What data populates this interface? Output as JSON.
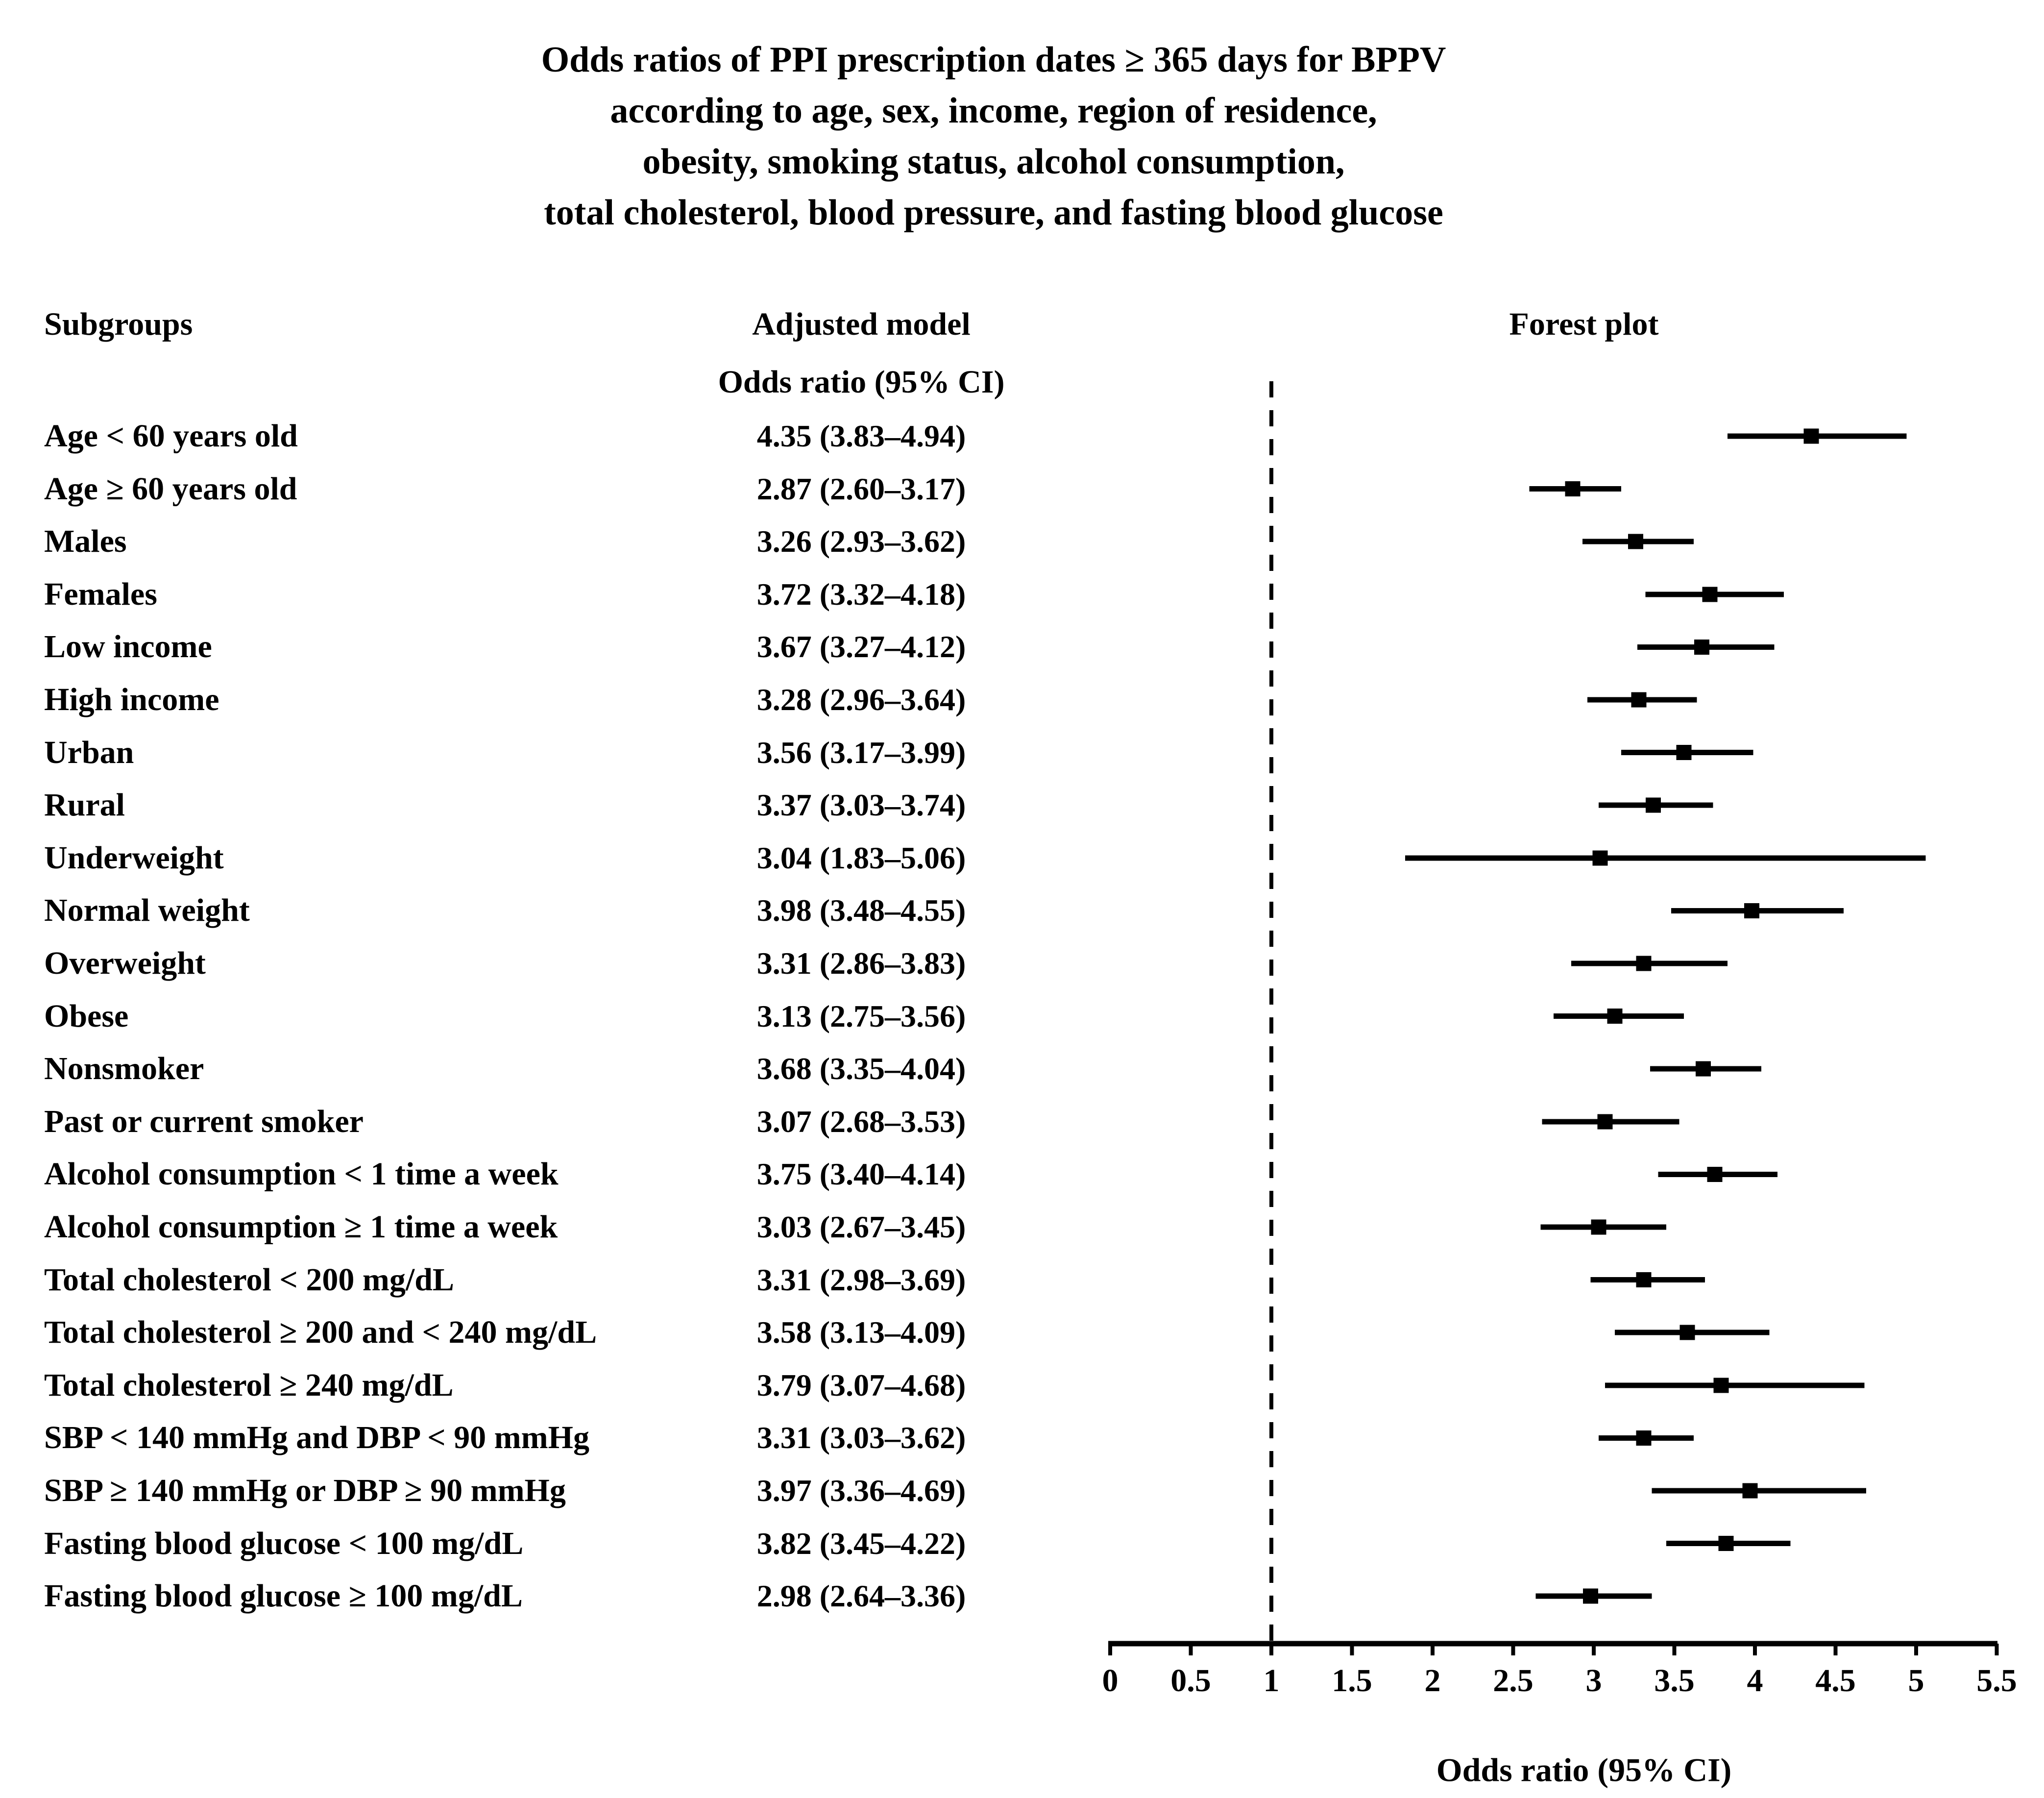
{
  "title": {
    "lines": [
      "Odds ratios of PPI prescription dates ≥ 365 days for BPPV",
      "according to age, sex, income, region of residence,",
      "obesity, smoking status, alcohol consumption,",
      "total cholesterol, blood pressure, and fasting blood glucose"
    ]
  },
  "columns": {
    "subgroups": "Subgroups",
    "adjusted_model": "Adjusted model",
    "odds_ratio_subheader": "Odds ratio (95% CI)",
    "forest_plot": "Forest plot"
  },
  "axis": {
    "label": "Odds ratio (95% CI)",
    "min": 0,
    "max": 5.5,
    "tick_step": 0.5,
    "reference_line": 1,
    "tick_labels": [
      "0",
      "0.5",
      "1",
      "1.5",
      "2",
      "2.5",
      "3",
      "3.5",
      "4",
      "4.5",
      "5",
      "5.5"
    ]
  },
  "colors": {
    "foreground": "#000000",
    "background": "#ffffff"
  },
  "chart_data": {
    "type": "forest",
    "title": "Odds ratios of PPI prescription dates ≥ 365 days for BPPV according to age, sex, income, region of residence, obesity, smoking status, alcohol consumption, total cholesterol, blood pressure, and fasting blood glucose",
    "xlabel": "Odds ratio (95% CI)",
    "xlim": [
      0,
      5.5
    ],
    "x_ticks": [
      0,
      0.5,
      1,
      1.5,
      2,
      2.5,
      3,
      3.5,
      4,
      4.5,
      5,
      5.5
    ],
    "reference_line": 1,
    "legend_position": "none",
    "grid": false,
    "rows": [
      {
        "label": "Age < 60 years old",
        "or": 4.35,
        "ci_low": 3.83,
        "ci_high": 4.94,
        "display": "4.35 (3.83–4.94)"
      },
      {
        "label": "Age ≥ 60 years old",
        "or": 2.87,
        "ci_low": 2.6,
        "ci_high": 3.17,
        "display": "2.87 (2.60–3.17)"
      },
      {
        "label": "Males",
        "or": 3.26,
        "ci_low": 2.93,
        "ci_high": 3.62,
        "display": "3.26 (2.93–3.62)"
      },
      {
        "label": "Females",
        "or": 3.72,
        "ci_low": 3.32,
        "ci_high": 4.18,
        "display": "3.72 (3.32–4.18)"
      },
      {
        "label": "Low income",
        "or": 3.67,
        "ci_low": 3.27,
        "ci_high": 4.12,
        "display": "3.67 (3.27–4.12)"
      },
      {
        "label": "High income",
        "or": 3.28,
        "ci_low": 2.96,
        "ci_high": 3.64,
        "display": "3.28 (2.96–3.64)"
      },
      {
        "label": "Urban",
        "or": 3.56,
        "ci_low": 3.17,
        "ci_high": 3.99,
        "display": "3.56 (3.17–3.99)"
      },
      {
        "label": "Rural",
        "or": 3.37,
        "ci_low": 3.03,
        "ci_high": 3.74,
        "display": "3.37 (3.03–3.74)"
      },
      {
        "label": "Underweight",
        "or": 3.04,
        "ci_low": 1.83,
        "ci_high": 5.06,
        "display": "3.04 (1.83–5.06)"
      },
      {
        "label": "Normal weight",
        "or": 3.98,
        "ci_low": 3.48,
        "ci_high": 4.55,
        "display": "3.98 (3.48–4.55)"
      },
      {
        "label": "Overweight",
        "or": 3.31,
        "ci_low": 2.86,
        "ci_high": 3.83,
        "display": "3.31 (2.86–3.83)"
      },
      {
        "label": "Obese",
        "or": 3.13,
        "ci_low": 2.75,
        "ci_high": 3.56,
        "display": "3.13 (2.75–3.56)"
      },
      {
        "label": "Nonsmoker",
        "or": 3.68,
        "ci_low": 3.35,
        "ci_high": 4.04,
        "display": "3.68 (3.35–4.04)"
      },
      {
        "label": "Past or current smoker",
        "or": 3.07,
        "ci_low": 2.68,
        "ci_high": 3.53,
        "display": "3.07 (2.68–3.53)"
      },
      {
        "label": "Alcohol consumption < 1 time a week",
        "or": 3.75,
        "ci_low": 3.4,
        "ci_high": 4.14,
        "display": "3.75 (3.40–4.14)"
      },
      {
        "label": "Alcohol consumption ≥ 1 time a week",
        "or": 3.03,
        "ci_low": 2.67,
        "ci_high": 3.45,
        "display": "3.03 (2.67–3.45)"
      },
      {
        "label": "Total cholesterol < 200 mg/dL",
        "or": 3.31,
        "ci_low": 2.98,
        "ci_high": 3.69,
        "display": "3.31 (2.98–3.69)"
      },
      {
        "label": "Total cholesterol ≥ 200 and < 240 mg/dL",
        "or": 3.58,
        "ci_low": 3.13,
        "ci_high": 4.09,
        "display": "3.58 (3.13–4.09)"
      },
      {
        "label": "Total cholesterol ≥ 240 mg/dL",
        "or": 3.79,
        "ci_low": 3.07,
        "ci_high": 4.68,
        "display": "3.79 (3.07–4.68)"
      },
      {
        "label": "SBP < 140 mmHg and DBP < 90 mmHg",
        "or": 3.31,
        "ci_low": 3.03,
        "ci_high": 3.62,
        "display": "3.31 (3.03–3.62)"
      },
      {
        "label": "SBP ≥ 140 mmHg or DBP ≥ 90 mmHg",
        "or": 3.97,
        "ci_low": 3.36,
        "ci_high": 4.69,
        "display": "3.97 (3.36–4.69)"
      },
      {
        "label": "Fasting blood glucose < 100 mg/dL",
        "or": 3.82,
        "ci_low": 3.45,
        "ci_high": 4.22,
        "display": "3.82 (3.45–4.22)"
      },
      {
        "label": "Fasting blood glucose ≥ 100 mg/dL",
        "or": 2.98,
        "ci_low": 2.64,
        "ci_high": 3.36,
        "display": "2.98 (2.64–3.36)"
      }
    ]
  }
}
